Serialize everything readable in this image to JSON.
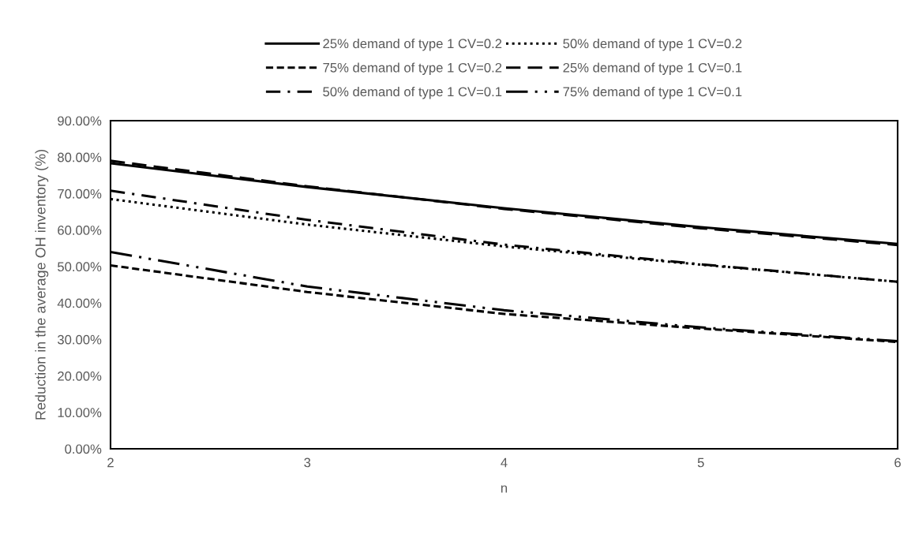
{
  "chart_data": {
    "type": "line",
    "xlabel": "n",
    "ylabel": "Reduction in the average OH inventory (%)",
    "x": [
      2,
      3,
      4,
      5,
      6
    ],
    "series": [
      {
        "name": "25% demand of type 1 CV=0.2",
        "color": "#000000",
        "line_style": "solid",
        "values": [
          78.3,
          71.8,
          66.0,
          60.8,
          56.2
        ]
      },
      {
        "name": "50% demand of type 1 CV=0.2",
        "color": "#000000",
        "line_style": "dotted",
        "values": [
          68.5,
          61.5,
          55.5,
          50.5,
          45.8
        ]
      },
      {
        "name": "75% demand of type 1 CV=0.2",
        "color": "#000000",
        "line_style": "dashed",
        "values": [
          50.3,
          43.0,
          37.0,
          33.0,
          29.3
        ]
      },
      {
        "name": "25% demand of type 1 CV=0.1",
        "color": "#000000",
        "line_style": "longdash",
        "values": [
          79.0,
          72.0,
          65.8,
          60.5,
          55.9
        ]
      },
      {
        "name": "50% demand of type 1 CV=0.1",
        "color": "#000000",
        "line_style": "dashdot",
        "values": [
          70.8,
          62.8,
          56.0,
          50.6,
          45.8
        ]
      },
      {
        "name": "75% demand of type 1 CV=0.1",
        "color": "#000000",
        "line_style": "longdashdotdot",
        "values": [
          54.0,
          44.5,
          38.0,
          33.3,
          29.5
        ]
      }
    ],
    "xlim": [
      2,
      6
    ],
    "xticks": [
      2,
      3,
      4,
      5,
      6
    ],
    "ylim": [
      0,
      90
    ],
    "yticks": [
      {
        "value": 0,
        "label": "0.00%"
      },
      {
        "value": 10,
        "label": "10.00%"
      },
      {
        "value": 20,
        "label": "20.00%"
      },
      {
        "value": 30,
        "label": "30.00%"
      },
      {
        "value": 40,
        "label": "40.00%"
      },
      {
        "value": 50,
        "label": "50.00%"
      },
      {
        "value": 60,
        "label": "60.00%"
      },
      {
        "value": 70,
        "label": "70.00%"
      },
      {
        "value": 80,
        "label": "80.00%"
      },
      {
        "value": 90,
        "label": "90.00%"
      }
    ],
    "grid": false,
    "legend": "top",
    "marker": "none"
  }
}
